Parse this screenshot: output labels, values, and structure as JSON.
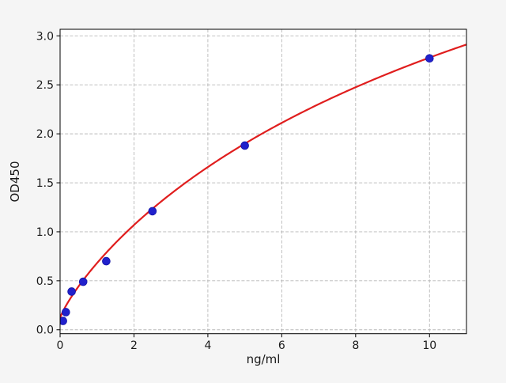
{
  "figure": {
    "background_color": "#f5f5f5",
    "plot_background_color": "#ffffff",
    "frame_color": "#000000",
    "grid_color": "#b8b8b8",
    "text_color": "#1a1a1a"
  },
  "chart_data": {
    "type": "scatter",
    "title": "",
    "xlabel": "ng/ml",
    "ylabel": "OD450",
    "xlim": [
      0,
      11
    ],
    "ylim": [
      -0.04,
      3.067
    ],
    "grid": true,
    "legend": "none",
    "x_ticks": [
      0,
      2,
      4,
      6,
      8,
      10
    ],
    "x_tick_labels": [
      "0",
      "2",
      "4",
      "6",
      "8",
      "10"
    ],
    "y_ticks": [
      0.0,
      0.5,
      1.0,
      1.5,
      2.0,
      2.5,
      3.0
    ],
    "y_tick_labels": [
      "0.0",
      "0.5",
      "1.0",
      "1.5",
      "2.0",
      "2.5",
      "3.0"
    ],
    "series": [
      {
        "name": "standard-points",
        "type": "scatter",
        "color": "#2121cc",
        "edge_color": "#1515a8",
        "marker_radius": 4.9,
        "x": [
          0.078,
          0.156,
          0.3125,
          0.625,
          1.25,
          2.5,
          5.0,
          10.0
        ],
        "y": [
          0.09,
          0.18,
          0.39,
          0.49,
          0.7,
          1.21,
          1.88,
          2.77
        ]
      },
      {
        "name": "fit-curve",
        "type": "line",
        "color": "#e01e1e",
        "line_width": 2.2,
        "fit_model": "hill",
        "fit_params": {
          "d": 0.12,
          "vmax": 6.9,
          "k": 11.3,
          "h": 0.85
        },
        "x_start": 0,
        "x_end": 11,
        "sample_values": {
          "x": [
            0,
            0.5,
            1,
            2,
            3,
            4,
            5,
            6,
            7,
            8,
            9,
            10,
            11
          ],
          "y": [
            0.12,
            0.45,
            0.64,
            1.07,
            1.39,
            1.66,
            1.9,
            2.1,
            2.28,
            2.44,
            2.58,
            2.78,
            2.91
          ]
        }
      }
    ]
  }
}
